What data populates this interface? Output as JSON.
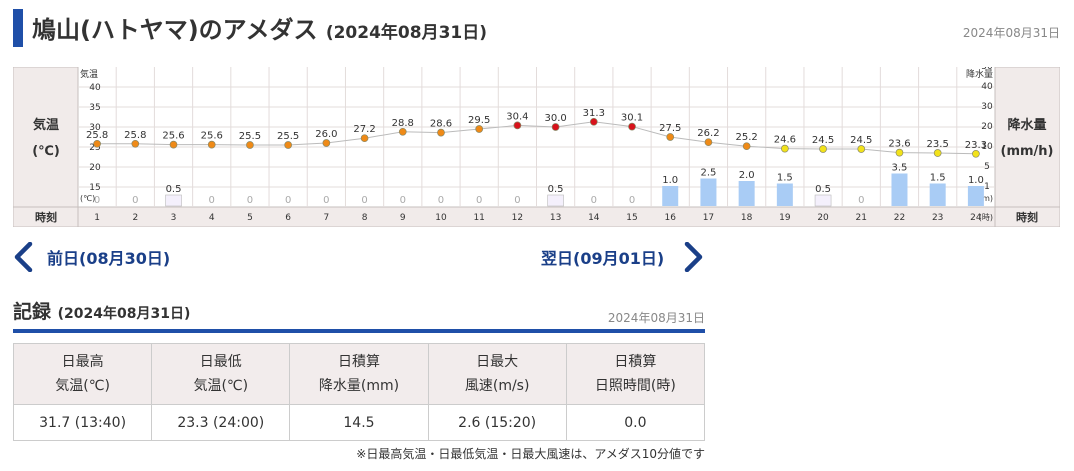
{
  "header": {
    "title": "鳩山(ハトヤマ)のアメダス",
    "title_date": "(2024年08月31日)",
    "date": "2024年08月31日"
  },
  "chart_data": {
    "type": "line+bar",
    "x_label": "時刻",
    "hours": [
      1,
      2,
      3,
      4,
      5,
      6,
      7,
      8,
      9,
      10,
      11,
      12,
      13,
      14,
      15,
      16,
      17,
      18,
      19,
      20,
      21,
      22,
      23,
      24
    ],
    "x_unit": "(時)",
    "temperature": {
      "label": "気温",
      "label_main": "気温",
      "label_unit": "(℃)",
      "unit": "(℃)",
      "ticks": [
        15,
        20,
        25,
        30,
        35,
        40
      ],
      "ylim": [
        15,
        40
      ],
      "values": [
        25.8,
        25.8,
        25.6,
        25.6,
        25.5,
        25.5,
        26.0,
        27.2,
        28.8,
        28.6,
        29.5,
        30.4,
        30.0,
        31.3,
        30.1,
        27.5,
        26.2,
        25.2,
        24.6,
        24.5,
        24.5,
        23.6,
        23.5,
        23.3
      ]
    },
    "precipitation": {
      "label": "降水量",
      "label_main": "降水量",
      "label_unit": "(mm/h)",
      "unit": "(mm)",
      "ticks": [
        1,
        5,
        10,
        20,
        30,
        40,
        50
      ],
      "values": [
        0,
        0,
        0.5,
        0,
        0,
        0,
        0,
        0,
        0,
        0,
        0,
        0,
        0.5,
        0,
        0,
        1.0,
        2.5,
        2.0,
        1.5,
        0.5,
        0,
        3.5,
        1.5,
        1.0
      ]
    },
    "colors": {
      "temp_hot": "#d8121b",
      "temp_warm": "#ef8a17",
      "temp_mild": "#f2e21a",
      "rain_bar": "#a9ccf5",
      "rain_light": "#f4f0fc"
    },
    "grid": true
  },
  "nav": {
    "prev_label": "前日(08月30日)",
    "next_label": "翌日(09月01日)"
  },
  "records": {
    "title": "記録",
    "title_date": "(2024年08月31日)",
    "date": "2024年08月31日",
    "headers": [
      [
        "日最高",
        "気温(℃)"
      ],
      [
        "日最低",
        "気温(℃)"
      ],
      [
        "日積算",
        "降水量(mm)"
      ],
      [
        "日最大",
        "風速(m/s)"
      ],
      [
        "日積算",
        "日照時間(時)"
      ]
    ],
    "values": [
      "31.7 (13:40)",
      "23.3 (24:00)",
      "14.5",
      "2.6 (15:20)",
      "0.0"
    ],
    "footnote": "※日最高気温・日最低気温・日最大風速は、アメダス10分値です"
  }
}
